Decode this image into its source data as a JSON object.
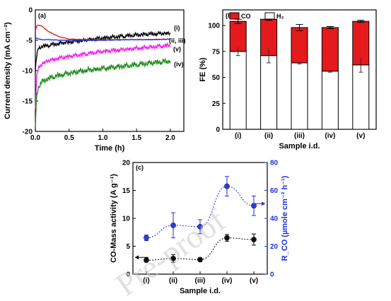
{
  "watermark": "Pre-proof",
  "chart_data": [
    {
      "panel": "(a)",
      "type": "line",
      "xlabel": "Time (h)",
      "ylabel": "Current density (mA cm⁻²)",
      "xlim": [
        0,
        2.2
      ],
      "ylim": [
        -20,
        0
      ],
      "xticks": [
        "0.0",
        "0.5",
        "1.0",
        "1.5",
        "2.0"
      ],
      "yticks": [
        "0",
        "-5",
        "-10",
        "-15",
        "-20"
      ],
      "series": [
        {
          "name": "(i)",
          "color": "#000000",
          "noise": 0.35,
          "x": [
            0,
            0.02,
            0.05,
            0.1,
            0.2,
            0.4,
            0.7,
            1.0,
            1.3,
            1.6,
            2.0
          ],
          "y": [
            -10,
            -7.5,
            -6.2,
            -6.0,
            -5.8,
            -5.4,
            -5.0,
            -4.6,
            -4.3,
            -4.0,
            -3.8
          ]
        },
        {
          "name": "(ii, iii)",
          "color": "#e41a1c",
          "noise": 0.05,
          "x": [
            0,
            0.02,
            0.05,
            0.1,
            0.2,
            0.35,
            0.5,
            0.8,
            1.2,
            1.6,
            2.0
          ],
          "y": [
            -3.5,
            -2.6,
            -2.5,
            -2.7,
            -3.6,
            -4.4,
            -4.8,
            -4.9,
            -4.9,
            -4.9,
            -4.8
          ]
        },
        {
          "name": "(ii, iii)",
          "color": "#1f2fdd",
          "noise": 0.05,
          "x": [
            0,
            0.02,
            0.05,
            0.1,
            0.2,
            0.4,
            0.6,
            1.0,
            1.4,
            1.8,
            2.0
          ],
          "y": [
            -4.8,
            -4.6,
            -4.8,
            -4.9,
            -4.9,
            -5.0,
            -5.0,
            -5.0,
            -4.9,
            -4.9,
            -4.8
          ]
        },
        {
          "name": "(v)",
          "color": "#ee1cee",
          "noise": 0.35,
          "x": [
            0,
            0.02,
            0.05,
            0.1,
            0.2,
            0.4,
            0.7,
            1.0,
            1.4,
            1.8,
            2.0
          ],
          "y": [
            -16,
            -11,
            -9.5,
            -8.8,
            -8.3,
            -7.8,
            -7.3,
            -6.8,
            -6.4,
            -6.0,
            -5.8
          ]
        },
        {
          "name": "(iv)",
          "color": "#1a8a1a",
          "noise": 0.45,
          "x": [
            0,
            0.02,
            0.05,
            0.1,
            0.2,
            0.4,
            0.7,
            1.0,
            1.4,
            1.8,
            2.0
          ],
          "y": [
            -19,
            -14,
            -12.5,
            -11.8,
            -11.2,
            -10.6,
            -10.0,
            -9.6,
            -9.1,
            -8.6,
            -8.4
          ]
        }
      ],
      "legend_labels": [
        "(i)",
        "(ii, iii)",
        "(v)",
        "(iv)"
      ]
    },
    {
      "panel": "(b)",
      "type": "bar",
      "xlabel": "Sample i.d.",
      "ylabel": "FE (%)",
      "ylim": [
        0,
        115
      ],
      "yticks": [
        "0",
        "25",
        "50",
        "75",
        "100"
      ],
      "categories": [
        "(i)",
        "(ii)",
        "(iii)",
        "(iv)",
        "(v)"
      ],
      "series": [
        {
          "name": "H₂",
          "color": "#ffffff",
          "values": [
            75,
            71,
            64,
            56,
            62
          ],
          "err": [
            4,
            7,
            1,
            1,
            7
          ]
        },
        {
          "name": "CO",
          "color": "#e41a1c",
          "values": [
            29,
            35,
            34,
            42,
            42
          ],
          "err": [
            2,
            1,
            3,
            1,
            1
          ]
        }
      ],
      "legend": [
        "CO",
        "H₂"
      ]
    },
    {
      "panel": "(c)",
      "type": "scatter",
      "xlabel": "Sample i.d.",
      "ylabel": "CO-Mass activity (A g⁻¹)",
      "ylabel2": "R_CO (µmole cm⁻² h⁻¹)",
      "ylim": [
        0,
        20
      ],
      "ylim2": [
        0,
        80
      ],
      "yticks": [
        "0",
        "5",
        "10",
        "15",
        "20"
      ],
      "yticks2": [
        "0",
        "20",
        "40",
        "60",
        "80"
      ],
      "categories": [
        "(i)",
        "(ii)",
        "(iii)",
        "(iv)",
        "(v)"
      ],
      "series": [
        {
          "name": "CO-Mass activity",
          "axis": "left",
          "color": "#000000",
          "values": [
            2.5,
            2.8,
            2.6,
            6.5,
            6.2
          ],
          "err": [
            0.3,
            0.7,
            0.3,
            0.6,
            1.0
          ]
        },
        {
          "name": "R_CO",
          "axis": "right",
          "color": "#1f2fdd",
          "values": [
            26,
            35,
            34,
            63,
            49
          ],
          "err": [
            2,
            9,
            5,
            7,
            7
          ]
        }
      ]
    }
  ]
}
